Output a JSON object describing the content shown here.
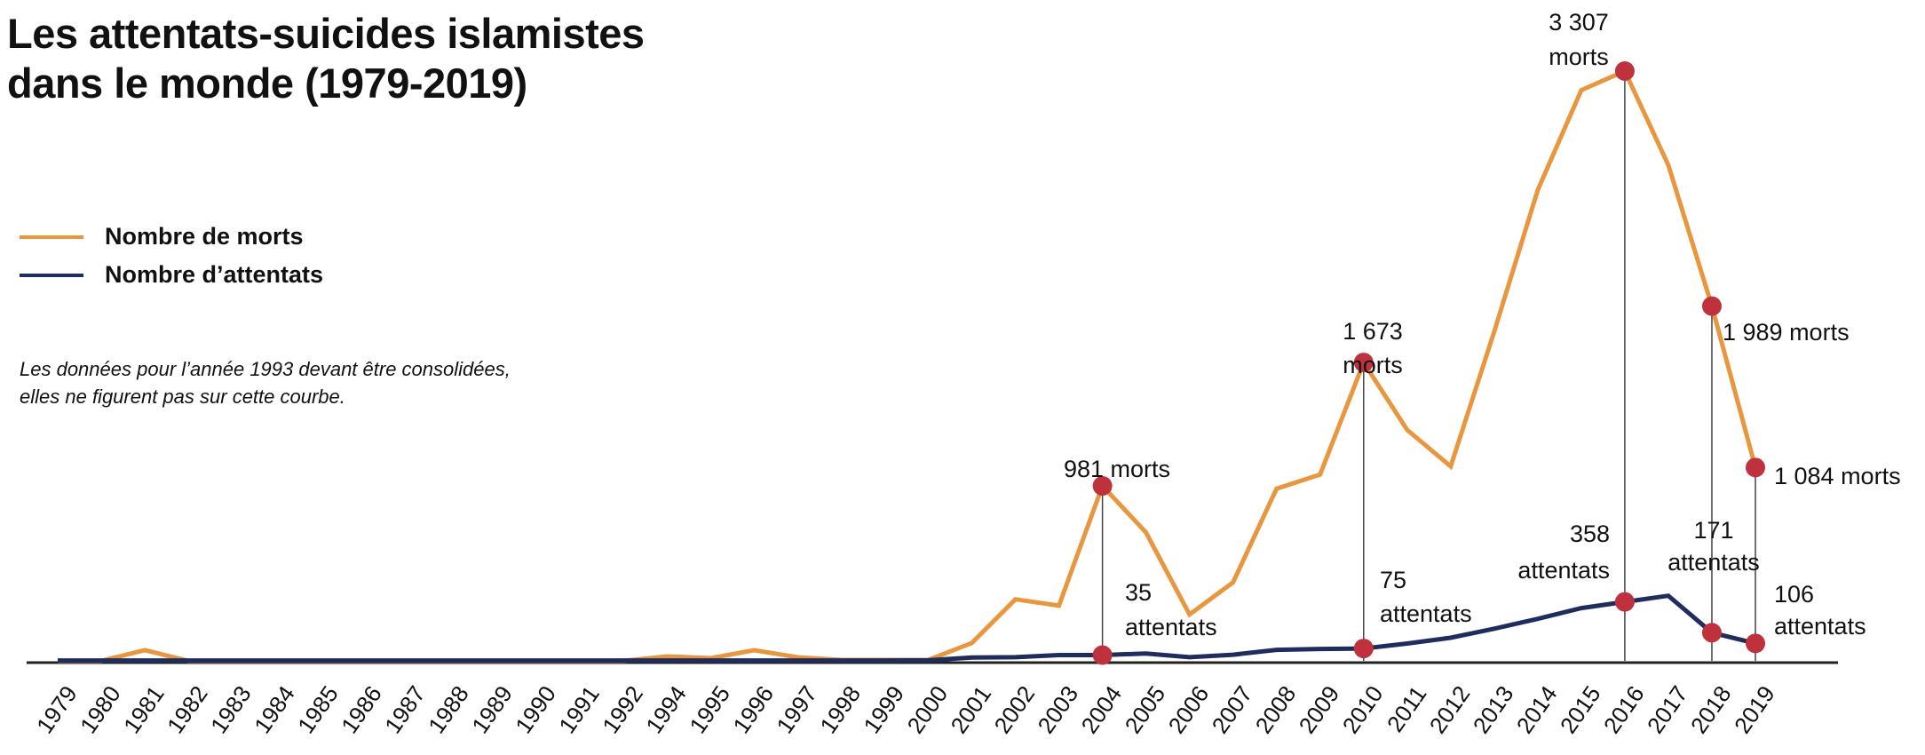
{
  "chart_data": {
    "type": "line",
    "title_line1": "Les attentats-suicides islamistes",
    "title_line2": "dans le monde (1979-2019)",
    "note": "Les données pour l’année 1993 devant être consolidées, elles ne figurent pas sur cette courbe.",
    "xlabel": "",
    "ylabel": "",
    "ylim": [
      0,
      3307
    ],
    "y2lim": [
      0,
      3580
    ],
    "legend_position": "left",
    "grid": false,
    "colors": {
      "deaths": "#E8973F",
      "attacks": "#1F2D5E",
      "marker": "#C0313E",
      "axis": "#222222"
    },
    "categories": [
      "1979",
      "1980",
      "1981",
      "1982",
      "1983",
      "1984",
      "1985",
      "1986",
      "1987",
      "1988",
      "1989",
      "1990",
      "1991",
      "1992",
      "1994",
      "1995",
      "1996",
      "1997",
      "1998",
      "1999",
      "2000",
      "2001",
      "2002",
      "2003",
      "2004",
      "2005",
      "2006",
      "2007",
      "2008",
      "2009",
      "2010",
      "2011",
      "2012",
      "2013",
      "2014",
      "2015",
      "2016",
      "2017",
      "2018",
      "2019"
    ],
    "series": [
      {
        "name": "Nombre de morts",
        "axis": "y",
        "values": [
          0,
          0,
          60,
          0,
          0,
          0,
          0,
          0,
          0,
          0,
          0,
          0,
          0,
          0,
          25,
          15,
          60,
          20,
          5,
          5,
          5,
          100,
          345,
          310,
          981,
          720,
          260,
          440,
          965,
          1045,
          1673,
          1295,
          1090,
          1845,
          2640,
          3200,
          3307,
          2780,
          1989,
          1084
        ]
      },
      {
        "name": "Nombre d’attentats",
        "axis": "y2",
        "values": [
          2,
          2,
          2,
          2,
          2,
          2,
          2,
          2,
          2,
          2,
          2,
          2,
          2,
          2,
          2,
          2,
          2,
          2,
          2,
          2,
          3,
          20,
          22,
          35,
          35,
          45,
          22,
          37,
          67,
          72,
          75,
          105,
          140,
          195,
          255,
          320,
          358,
          395,
          171,
          106
        ]
      }
    ],
    "annotations": {
      "d2004": {
        "line1": "981 morts"
      },
      "a2004": {
        "line1": "35",
        "line2": "attentats"
      },
      "d2010": {
        "line1": "1 673",
        "line2": "morts"
      },
      "a2010": {
        "line1": "75",
        "line2": "attentats"
      },
      "d2016": {
        "line1": "3 307",
        "line2": "morts"
      },
      "a2016": {
        "line1": "358",
        "line2": "attentats"
      },
      "d2018": {
        "line1": "1 989 morts"
      },
      "a2018": {
        "line1": "171",
        "line2": "attentats"
      },
      "d2019": {
        "line1": "1 084 morts"
      },
      "a2019": {
        "line1": "106",
        "line2": "attentats"
      }
    },
    "highlight_years": [
      "2004",
      "2010",
      "2016",
      "2018",
      "2019"
    ]
  }
}
